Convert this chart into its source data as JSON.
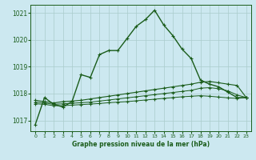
{
  "title": "Graphe pression niveau de la mer (hPa)",
  "bg_color": "#cce8f0",
  "grid_color": "#aacccc",
  "line_color_main": "#1a5c1a",
  "xlim": [
    -0.5,
    23.5
  ],
  "ylim": [
    1016.6,
    1021.3
  ],
  "yticks": [
    1017,
    1018,
    1019,
    1020,
    1021
  ],
  "xticks": [
    0,
    1,
    2,
    3,
    4,
    5,
    6,
    7,
    8,
    9,
    10,
    11,
    12,
    13,
    14,
    15,
    16,
    17,
    18,
    19,
    20,
    21,
    22,
    23
  ],
  "series_main": [
    1016.85,
    1017.85,
    1017.6,
    1017.5,
    1017.7,
    1018.7,
    1018.6,
    1019.45,
    1019.6,
    1019.6,
    1020.05,
    1020.5,
    1020.75,
    1021.1,
    1020.55,
    1020.15,
    1019.65,
    1019.3,
    1018.5,
    1018.35,
    1018.25,
    1018.05,
    1017.85,
    1017.85
  ],
  "series_b": [
    1017.75,
    1017.7,
    1017.65,
    1017.7,
    1017.72,
    1017.75,
    1017.8,
    1017.85,
    1017.9,
    1017.95,
    1018.0,
    1018.05,
    1018.1,
    1018.15,
    1018.2,
    1018.25,
    1018.3,
    1018.35,
    1018.42,
    1018.45,
    1018.4,
    1018.35,
    1018.3,
    1017.85
  ],
  "series_c": [
    1017.68,
    1017.65,
    1017.6,
    1017.62,
    1017.64,
    1017.66,
    1017.68,
    1017.72,
    1017.76,
    1017.8,
    1017.84,
    1017.88,
    1017.92,
    1017.96,
    1018.0,
    1018.04,
    1018.08,
    1018.12,
    1018.2,
    1018.22,
    1018.18,
    1018.1,
    1017.95,
    1017.85
  ],
  "series_d": [
    1017.62,
    1017.6,
    1017.55,
    1017.55,
    1017.57,
    1017.59,
    1017.61,
    1017.63,
    1017.66,
    1017.68,
    1017.7,
    1017.73,
    1017.76,
    1017.79,
    1017.82,
    1017.85,
    1017.88,
    1017.9,
    1017.92,
    1017.9,
    1017.87,
    1017.84,
    1017.82,
    1017.85
  ]
}
